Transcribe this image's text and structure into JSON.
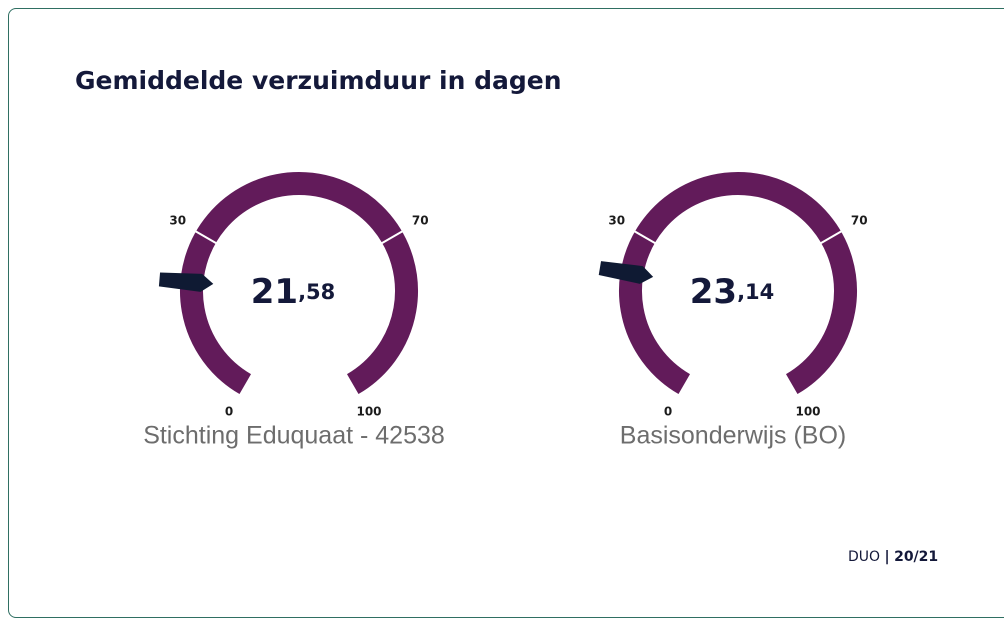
{
  "title": "Gemiddelde verzuimduur in dagen",
  "chart_data": [
    {
      "type": "gauge",
      "label": "Stichting Eduquaat - 42538",
      "values": [
        21.58
      ],
      "value_labels": [
        "21,58"
      ],
      "ylim": [
        0,
        100
      ],
      "yticks": [
        0,
        30,
        70,
        100
      ],
      "color": "#621b5a",
      "needle_color": "#0f1a33"
    },
    {
      "type": "gauge",
      "label": "Basisonderwijs (BO)",
      "values": [
        23.14
      ],
      "value_labels": [
        "23,14"
      ],
      "ylim": [
        0,
        100
      ],
      "yticks": [
        0,
        30,
        70,
        100
      ],
      "color": "#621b5a",
      "needle_color": "#0f1a33"
    }
  ],
  "footer": {
    "source": "DUO",
    "separator": "|",
    "period": "20/21"
  }
}
